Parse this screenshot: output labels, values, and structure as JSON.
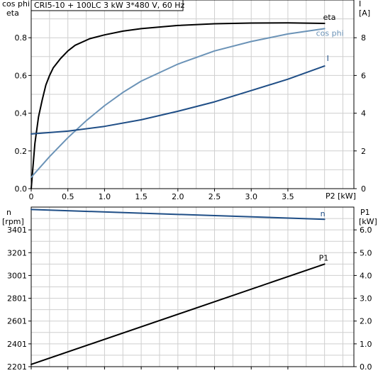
{
  "header": {
    "title": "CRI5-10 + 100LC   3 kW   3*480 V, 60 Hz"
  },
  "top_chart": {
    "left_axis": {
      "label_line1": "cos phi",
      "label_line2": "eta"
    },
    "right_axis": {
      "label_line1": "I",
      "label_line2": "[A]"
    },
    "x_axis_label": "P2 [kW]"
  },
  "bottom_chart": {
    "left_axis": {
      "label_line1": "n",
      "label_line2": "[rpm]"
    },
    "right_axis": {
      "label_line1": "P1",
      "label_line2": "[kW]"
    }
  },
  "colors": {
    "eta": "#000000",
    "cos_phi": "#6b93b7",
    "I": "#1f4e86",
    "n": "#1f4e86",
    "P1": "#000000",
    "grid": "#cfcfcf"
  },
  "chart_data": [
    {
      "type": "line",
      "x_range": [
        0,
        4.4
      ],
      "x_ticks": [
        0,
        0.5,
        1.0,
        1.5,
        2.0,
        2.5,
        3.0,
        3.5
      ],
      "x_tick_labels": [
        "0",
        "0.5",
        "1.0",
        "1.5",
        "2.0",
        "2.5",
        "3.0",
        "3.5"
      ],
      "y_range": [
        0,
        1.0
      ],
      "y_ticks": [
        0,
        0.2,
        0.4,
        0.6,
        0.8
      ],
      "y_tick_labels": [
        "0.0",
        "0.2",
        "0.4",
        "0.6",
        "0.8"
      ],
      "y2_range": [
        0,
        10
      ],
      "y2_ticks": [
        0,
        2,
        4,
        6,
        8
      ],
      "y2_tick_labels": [
        "0",
        "2",
        "4",
        "6",
        "8"
      ],
      "grid": true,
      "series": [
        {
          "name": "eta",
          "axis": "left",
          "color_key": "eta",
          "x": [
            0,
            0.05,
            0.1,
            0.15,
            0.2,
            0.25,
            0.3,
            0.4,
            0.5,
            0.6,
            0.8,
            1.0,
            1.25,
            1.5,
            2.0,
            2.5,
            3.0,
            3.5,
            4.0
          ],
          "y": [
            0.0,
            0.24,
            0.38,
            0.47,
            0.55,
            0.6,
            0.64,
            0.69,
            0.73,
            0.76,
            0.795,
            0.815,
            0.835,
            0.848,
            0.865,
            0.874,
            0.878,
            0.879,
            0.876
          ]
        },
        {
          "name": "cos phi",
          "axis": "left",
          "color_key": "cos_phi",
          "x": [
            0,
            0.25,
            0.5,
            0.75,
            1.0,
            1.25,
            1.5,
            2.0,
            2.5,
            3.0,
            3.5,
            4.0
          ],
          "y": [
            0.06,
            0.17,
            0.27,
            0.36,
            0.44,
            0.51,
            0.57,
            0.66,
            0.73,
            0.78,
            0.82,
            0.848
          ]
        },
        {
          "name": "I",
          "axis": "right",
          "color_key": "I",
          "x": [
            0,
            0.5,
            1.0,
            1.5,
            2.0,
            2.5,
            3.0,
            3.5,
            4.0
          ],
          "y": [
            2.9,
            3.05,
            3.3,
            3.65,
            4.1,
            4.6,
            5.2,
            5.8,
            6.5
          ]
        }
      ]
    },
    {
      "type": "line",
      "x_range": [
        0,
        4.4
      ],
      "x_ticks": [
        0,
        0.5,
        1.0,
        1.5,
        2.0,
        2.5,
        3.0,
        3.5
      ],
      "y_range": [
        2201,
        3601
      ],
      "y_ticks": [
        2201,
        2401,
        2601,
        2801,
        3001,
        3201,
        3401
      ],
      "y_tick_labels": [
        "2201",
        "2401",
        "2601",
        "2801",
        "3001",
        "3201",
        "3401"
      ],
      "y2_range": [
        0,
        7.0
      ],
      "y2_ticks": [
        0,
        1.0,
        2.0,
        3.0,
        4.0,
        5.0,
        6.0
      ],
      "y2_tick_labels": [
        "0.0",
        "1.0",
        "2.0",
        "3.0",
        "4.0",
        "5.0",
        "6.0"
      ],
      "grid": true,
      "series": [
        {
          "name": "n",
          "axis": "left",
          "color_key": "n",
          "x": [
            0,
            4.0
          ],
          "y": [
            3580,
            3494
          ]
        },
        {
          "name": "P1",
          "axis": "right",
          "color_key": "P1",
          "x": [
            0,
            4.0
          ],
          "y": [
            0.1,
            4.5
          ]
        }
      ]
    }
  ]
}
